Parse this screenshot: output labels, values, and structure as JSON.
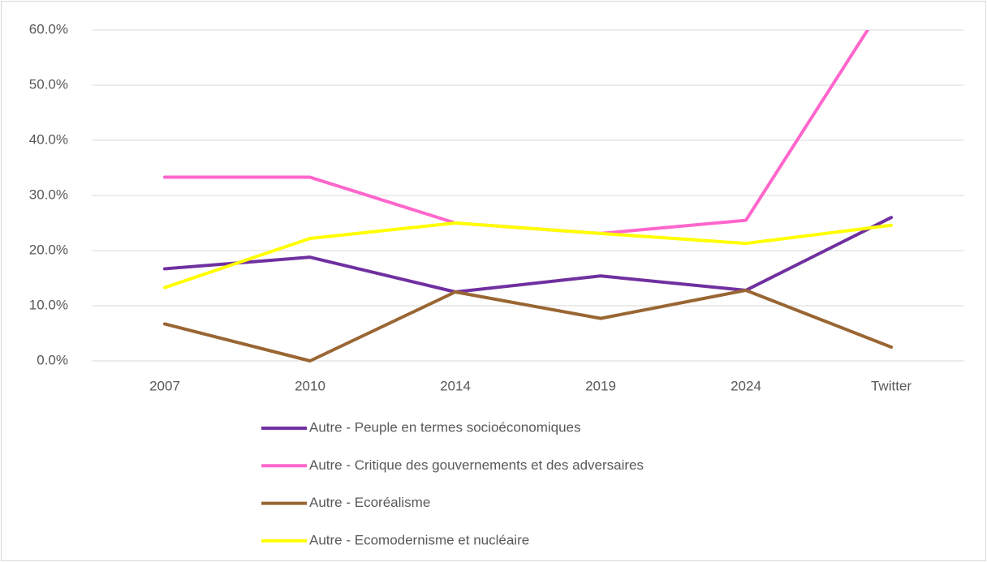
{
  "chart_data": {
    "type": "line",
    "categories": [
      "2007",
      "2010",
      "2014",
      "2019",
      "2024",
      "Twitter"
    ],
    "series": [
      {
        "name": "Autre - Peuple en termes socioéconomiques",
        "color": "#7030a0",
        "values": [
          16.7,
          18.8,
          12.5,
          15.4,
          12.8,
          26.0
        ]
      },
      {
        "name": "Autre - Critique des gouvernements et des adversaires",
        "color": "#ff66cc",
        "values": [
          33.3,
          33.3,
          25.0,
          23.1,
          25.5,
          66.7
        ]
      },
      {
        "name": "Autre - Ecoréalisme",
        "color": "#996633",
        "values": [
          6.7,
          0.0,
          12.5,
          7.7,
          12.8,
          2.5
        ]
      },
      {
        "name": "Autre - Ecomodernisme et nucléaire",
        "color": "#ffff00",
        "values": [
          13.3,
          22.2,
          25.0,
          23.1,
          21.3,
          24.6
        ]
      }
    ],
    "ylim": [
      0,
      60
    ],
    "yticks": [
      {
        "value": 0,
        "label": "0.0%"
      },
      {
        "value": 10,
        "label": "10.0%"
      },
      {
        "value": 20,
        "label": "20.0%"
      },
      {
        "value": 30,
        "label": "30.0%"
      },
      {
        "value": 40,
        "label": "40.0%"
      },
      {
        "value": 50,
        "label": "50.0%"
      },
      {
        "value": 60,
        "label": "60.0%"
      }
    ],
    "grid": true,
    "legend": "bottom"
  }
}
